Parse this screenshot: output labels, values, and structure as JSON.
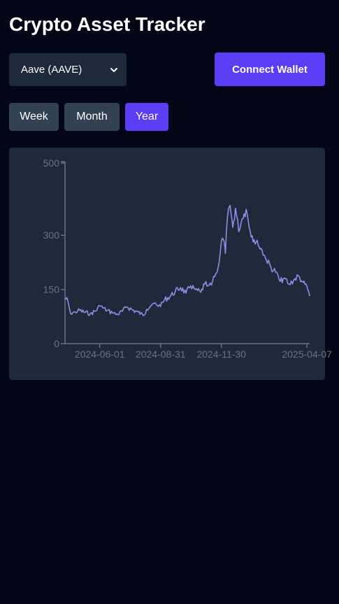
{
  "header": {
    "title": "Crypto Asset Tracker"
  },
  "asset_select": {
    "selected": "Aave (AAVE)",
    "icon": "chevron-down-icon"
  },
  "wallet": {
    "connect_label": "Connect Wallet"
  },
  "range": {
    "week_label": "Week",
    "month_label": "Month",
    "year_label": "Year",
    "active": "year"
  },
  "colors": {
    "background": "#020617",
    "panel": "#1e293b",
    "accent": "#5b3df5",
    "button": "#334155",
    "line": "#8b8fe0",
    "axis": "#64748b"
  },
  "chart_data": {
    "type": "line",
    "title": "",
    "xlabel": "",
    "ylabel": "",
    "x_range": [
      "2024-04-10",
      "2025-04-11"
    ],
    "ylim": [
      0,
      500
    ],
    "y_ticks": [
      0,
      150,
      300,
      500
    ],
    "x_ticks": [
      "2024-06-01",
      "2024-08-31",
      "2024-11-30",
      "2025-04-07"
    ],
    "grid": false,
    "legend": "none",
    "series": [
      {
        "x": [
          "2024-04-10",
          "2024-04-14",
          "2024-04-18",
          "2024-04-25",
          "2024-05-02",
          "2024-05-10",
          "2024-05-18",
          "2024-05-26",
          "2024-06-01",
          "2024-06-06",
          "2024-06-12",
          "2024-06-20",
          "2024-06-28",
          "2024-07-05",
          "2024-07-12",
          "2024-07-20",
          "2024-07-28",
          "2024-08-05",
          "2024-08-10",
          "2024-08-18",
          "2024-08-24",
          "2024-08-31",
          "2024-09-06",
          "2024-09-14",
          "2024-09-22",
          "2024-09-30",
          "2024-10-08",
          "2024-10-15",
          "2024-10-22",
          "2024-10-30",
          "2024-11-05",
          "2024-11-10",
          "2024-11-15",
          "2024-11-20",
          "2024-11-25",
          "2024-11-30",
          "2024-12-03",
          "2024-12-06",
          "2024-12-09",
          "2024-12-13",
          "2024-12-17",
          "2024-12-21",
          "2024-12-26",
          "2024-12-31",
          "2025-01-06",
          "2025-01-12",
          "2025-01-18",
          "2025-01-24",
          "2025-01-30",
          "2025-02-05",
          "2025-02-12",
          "2025-02-19",
          "2025-02-26",
          "2025-03-04",
          "2025-03-11",
          "2025-03-18",
          "2025-03-25",
          "2025-04-01",
          "2025-04-07",
          "2025-04-11"
        ],
        "y": [
          126,
          120,
          85,
          88,
          92,
          86,
          84,
          90,
          105,
          98,
          92,
          85,
          80,
          90,
          102,
          93,
          88,
          78,
          95,
          108,
          110,
          103,
          122,
          130,
          145,
          155,
          140,
          160,
          150,
          142,
          165,
          160,
          162,
          185,
          210,
          285,
          288,
          250,
          350,
          383,
          322,
          375,
          310,
          345,
          372,
          312,
          288,
          272,
          258,
          232,
          212,
          198,
          172,
          182,
          165,
          175,
          188,
          170,
          158,
          132
        ]
      }
    ]
  }
}
